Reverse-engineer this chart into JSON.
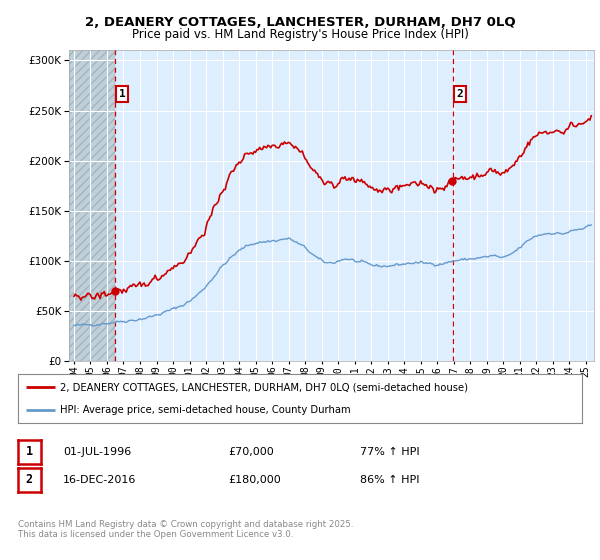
{
  "title1": "2, DEANERY COTTAGES, LANCHESTER, DURHAM, DH7 0LQ",
  "title2": "Price paid vs. HM Land Registry's House Price Index (HPI)",
  "legend_line1": "2, DEANERY COTTAGES, LANCHESTER, DURHAM, DH7 0LQ (semi-detached house)",
  "legend_line2": "HPI: Average price, semi-detached house, County Durham",
  "annotation1_date": "01-JUL-1996",
  "annotation1_price": "£70,000",
  "annotation1_hpi": "77% ↑ HPI",
  "annotation2_date": "16-DEC-2016",
  "annotation2_price": "£180,000",
  "annotation2_hpi": "86% ↑ HPI",
  "copyright": "Contains HM Land Registry data © Crown copyright and database right 2025.\nThis data is licensed under the Open Government Licence v3.0.",
  "sale1_year": 1996.5,
  "sale1_price": 70000,
  "sale2_year": 2016.958,
  "sale2_price": 180000,
  "ylim_min": 0,
  "ylim_max": 310000,
  "xlim_min": 1993.7,
  "xlim_max": 2025.5,
  "line_color_red": "#cc0000",
  "line_color_blue": "#6699cc",
  "background_color": "#ddeeff",
  "hatch_color": "#c8d8e8",
  "grid_color": "#ffffff",
  "annotation_box_color": "#cc0000"
}
